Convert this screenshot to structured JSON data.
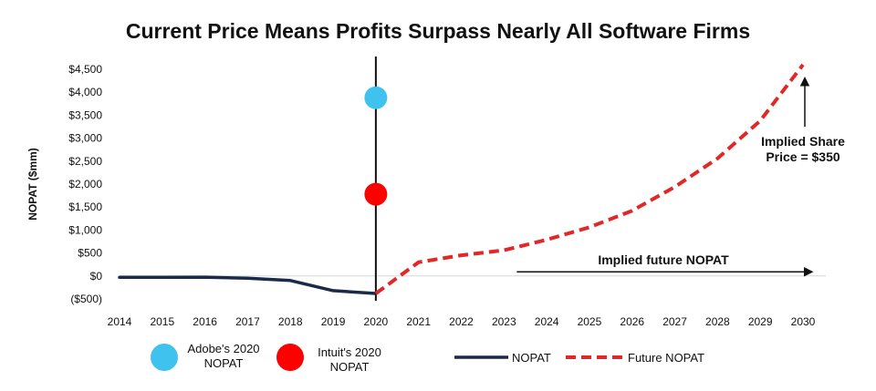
{
  "chart_data": {
    "type": "line",
    "title": "Current Price Means Profits Surpass Nearly All Software Firms",
    "ylabel": "NOPAT ($mm)",
    "xlabel": "",
    "ylim": [
      -500,
      4500
    ],
    "y_ticks": [
      "$4,500",
      "$4,000",
      "$3,500",
      "$3,000",
      "$2,500",
      "$2,000",
      "$1,500",
      "$1,000",
      "$500",
      "$0",
      "($500)"
    ],
    "y_tick_values": [
      4500,
      4000,
      3500,
      3000,
      2500,
      2000,
      1500,
      1000,
      500,
      0,
      -500
    ],
    "negative_tick_color": "#d9261c",
    "x_ticks": [
      "2014",
      "2015",
      "2016",
      "2017",
      "2018",
      "2019",
      "2020",
      "2021",
      "2022",
      "2023",
      "2024",
      "2025",
      "2026",
      "2027",
      "2028",
      "2029",
      "2030"
    ],
    "x_tick_values": [
      2014,
      2015,
      2016,
      2017,
      2018,
      2019,
      2020,
      2021,
      2022,
      2023,
      2024,
      2025,
      2026,
      2027,
      2028,
      2029,
      2030
    ],
    "xlim": [
      2014,
      2030
    ],
    "vertical_line_at": 2020,
    "series": [
      {
        "name": "NOPAT",
        "style": "solid",
        "color": "#1b2a4a",
        "x": [
          2014,
          2015,
          2016,
          2017,
          2018,
          2019,
          2020
        ],
        "values": [
          -30,
          -30,
          -25,
          -50,
          -100,
          -320,
          -380
        ]
      },
      {
        "name": "Future NOPAT",
        "style": "dashed",
        "color": "#e02828",
        "x": [
          2020,
          2021,
          2022,
          2023,
          2024,
          2025,
          2026,
          2027,
          2028,
          2029,
          2030
        ],
        "values": [
          -380,
          300,
          450,
          560,
          790,
          1060,
          1420,
          1940,
          2560,
          3380,
          4600
        ]
      }
    ],
    "points": [
      {
        "name": "Adobe's 2020 NOPAT",
        "x": 2020,
        "y": 3880,
        "color": "#3fc3ee"
      },
      {
        "name": "Intuit's 2020 NOPAT",
        "x": 2020,
        "y": 1780,
        "color": "#ff0000"
      }
    ],
    "annotations": [
      {
        "lines": [
          "Implied future NOPAT"
        ],
        "arrow_from": 2023.3,
        "arrow_to": 2030.2,
        "arrow_y": 150
      },
      {
        "lines": [
          "Implied Share",
          "Price = $350"
        ],
        "arrow_to_x": 2030,
        "arrow_to_y": 4300,
        "arrow_from_y": 3300
      }
    ],
    "legend": {
      "placement": "bottom",
      "entries": [
        {
          "lines": [
            "Adobe's 2020",
            "NOPAT"
          ],
          "kind": "dot",
          "color": "#3fc3ee"
        },
        {
          "lines": [
            "Intuit's 2020",
            "NOPAT"
          ],
          "kind": "dot",
          "color": "#ff0000"
        },
        {
          "lines": [
            "NOPAT"
          ],
          "kind": "solid",
          "color": "#1b2a4a"
        },
        {
          "lines": [
            "Future NOPAT"
          ],
          "kind": "dashed",
          "color": "#e02828"
        }
      ]
    },
    "grid": false
  }
}
